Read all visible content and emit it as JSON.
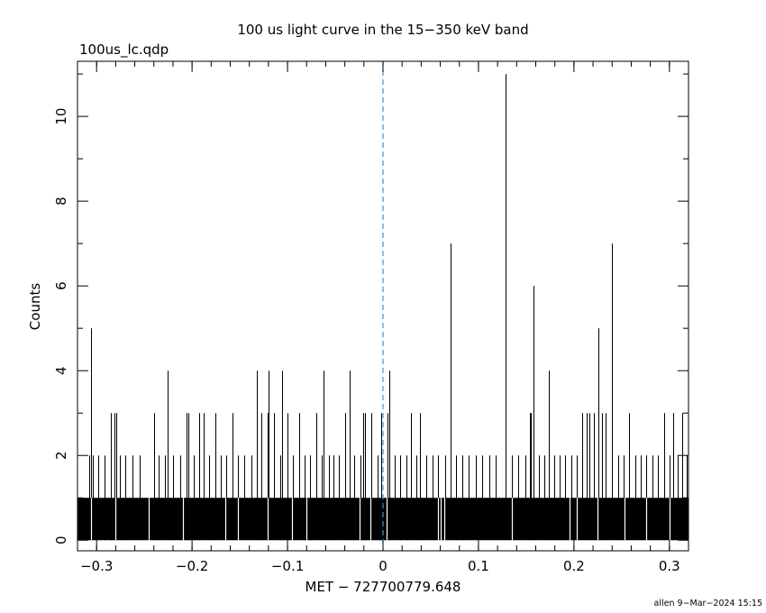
{
  "chart_data": {
    "type": "bar",
    "title": "100 us light curve in the 15−350 keV band",
    "file_label": "100us_lc.qdp",
    "xlabel": "MET − 727700779.648",
    "ylabel": "Counts",
    "footer": "allen  9−Mar−2024 15:15",
    "xlim": [
      -0.32,
      0.32
    ],
    "ylim": [
      -0.25,
      11.3
    ],
    "x_ticks": [
      {
        "value": -0.3,
        "label": "−0.3"
      },
      {
        "value": -0.2,
        "label": "−0.2"
      },
      {
        "value": -0.1,
        "label": "−0.1"
      },
      {
        "value": 0,
        "label": "0"
      },
      {
        "value": 0.1,
        "label": "0.1"
      },
      {
        "value": 0.2,
        "label": "0.2"
      },
      {
        "value": 0.3,
        "label": "0.3"
      }
    ],
    "y_ticks": [
      {
        "value": 0,
        "label": "0"
      },
      {
        "value": 2,
        "label": "2"
      },
      {
        "value": 4,
        "label": "4"
      },
      {
        "value": 6,
        "label": "6"
      },
      {
        "value": 8,
        "label": "8"
      },
      {
        "value": 10,
        "label": "10"
      }
    ],
    "trigger_line": {
      "x": 0,
      "color": "#3399cc",
      "style": "dashed"
    },
    "bin_width": 0.0001,
    "baseline_counts": 1,
    "peaks": [
      {
        "x": -0.3075,
        "y": 2
      },
      {
        "x": -0.306,
        "y": 3
      },
      {
        "x": -0.3055,
        "y": 5
      },
      {
        "x": -0.304,
        "y": 2
      },
      {
        "x": -0.298,
        "y": 2
      },
      {
        "x": -0.292,
        "y": 2
      },
      {
        "x": -0.285,
        "y": 3
      },
      {
        "x": -0.281,
        "y": 3
      },
      {
        "x": -0.279,
        "y": 3
      },
      {
        "x": -0.276,
        "y": 2
      },
      {
        "x": -0.27,
        "y": 2
      },
      {
        "x": -0.262,
        "y": 2
      },
      {
        "x": -0.255,
        "y": 2
      },
      {
        "x": -0.24,
        "y": 3
      },
      {
        "x": -0.235,
        "y": 2
      },
      {
        "x": -0.228,
        "y": 2
      },
      {
        "x": -0.2255,
        "y": 4
      },
      {
        "x": -0.22,
        "y": 2
      },
      {
        "x": -0.212,
        "y": 2
      },
      {
        "x": -0.206,
        "y": 3
      },
      {
        "x": -0.204,
        "y": 3
      },
      {
        "x": -0.198,
        "y": 2
      },
      {
        "x": -0.193,
        "y": 3
      },
      {
        "x": -0.188,
        "y": 3
      },
      {
        "x": -0.182,
        "y": 2
      },
      {
        "x": -0.176,
        "y": 3
      },
      {
        "x": -0.17,
        "y": 2
      },
      {
        "x": -0.164,
        "y": 2
      },
      {
        "x": -0.158,
        "y": 3
      },
      {
        "x": -0.152,
        "y": 2
      },
      {
        "x": -0.145,
        "y": 2
      },
      {
        "x": -0.138,
        "y": 2
      },
      {
        "x": -0.1325,
        "y": 4
      },
      {
        "x": -0.127,
        "y": 3
      },
      {
        "x": -0.121,
        "y": 3
      },
      {
        "x": -0.1195,
        "y": 4
      },
      {
        "x": -0.114,
        "y": 3
      },
      {
        "x": -0.108,
        "y": 2
      },
      {
        "x": -0.1055,
        "y": 4
      },
      {
        "x": -0.1,
        "y": 3
      },
      {
        "x": -0.094,
        "y": 2
      },
      {
        "x": -0.088,
        "y": 3
      },
      {
        "x": -0.082,
        "y": 2
      },
      {
        "x": -0.076,
        "y": 2
      },
      {
        "x": -0.0695,
        "y": 3
      },
      {
        "x": -0.0645,
        "y": 2
      },
      {
        "x": -0.0625,
        "y": 4
      },
      {
        "x": -0.057,
        "y": 2
      },
      {
        "x": -0.052,
        "y": 2
      },
      {
        "x": -0.046,
        "y": 2
      },
      {
        "x": -0.04,
        "y": 3
      },
      {
        "x": -0.0345,
        "y": 4
      },
      {
        "x": -0.03,
        "y": 2
      },
      {
        "x": -0.024,
        "y": 2
      },
      {
        "x": -0.0205,
        "y": 3
      },
      {
        "x": -0.0185,
        "y": 3
      },
      {
        "x": -0.012,
        "y": 3
      },
      {
        "x": -0.006,
        "y": 2
      },
      {
        "x": -0.002,
        "y": 3
      },
      {
        "x": 0.005,
        "y": 3
      },
      {
        "x": 0.0065,
        "y": 4
      },
      {
        "x": 0.012,
        "y": 2
      },
      {
        "x": 0.018,
        "y": 2
      },
      {
        "x": 0.025,
        "y": 2
      },
      {
        "x": 0.029,
        "y": 3
      },
      {
        "x": 0.035,
        "y": 2
      },
      {
        "x": 0.039,
        "y": 3
      },
      {
        "x": 0.045,
        "y": 2
      },
      {
        "x": 0.052,
        "y": 2
      },
      {
        "x": 0.058,
        "y": 2
      },
      {
        "x": 0.065,
        "y": 2
      },
      {
        "x": 0.0705,
        "y": 7
      },
      {
        "x": 0.076,
        "y": 2
      },
      {
        "x": 0.083,
        "y": 2
      },
      {
        "x": 0.09,
        "y": 2
      },
      {
        "x": 0.097,
        "y": 2
      },
      {
        "x": 0.104,
        "y": 2
      },
      {
        "x": 0.111,
        "y": 2
      },
      {
        "x": 0.118,
        "y": 2
      },
      {
        "x": 0.1285,
        "y": 11
      },
      {
        "x": 0.135,
        "y": 2
      },
      {
        "x": 0.142,
        "y": 2
      },
      {
        "x": 0.149,
        "y": 2
      },
      {
        "x": 0.1535,
        "y": 3
      },
      {
        "x": 0.155,
        "y": 3
      },
      {
        "x": 0.1575,
        "y": 6
      },
      {
        "x": 0.163,
        "y": 2
      },
      {
        "x": 0.169,
        "y": 2
      },
      {
        "x": 0.1735,
        "y": 4
      },
      {
        "x": 0.179,
        "y": 2
      },
      {
        "x": 0.185,
        "y": 2
      },
      {
        "x": 0.191,
        "y": 2
      },
      {
        "x": 0.197,
        "y": 2
      },
      {
        "x": 0.203,
        "y": 2
      },
      {
        "x": 0.209,
        "y": 3
      },
      {
        "x": 0.2135,
        "y": 3
      },
      {
        "x": 0.216,
        "y": 3
      },
      {
        "x": 0.221,
        "y": 3
      },
      {
        "x": 0.2255,
        "y": 5
      },
      {
        "x": 0.229,
        "y": 3
      },
      {
        "x": 0.2335,
        "y": 3
      },
      {
        "x": 0.2395,
        "y": 7
      },
      {
        "x": 0.246,
        "y": 2
      },
      {
        "x": 0.252,
        "y": 2
      },
      {
        "x": 0.258,
        "y": 3
      },
      {
        "x": 0.264,
        "y": 2
      },
      {
        "x": 0.27,
        "y": 2
      },
      {
        "x": 0.276,
        "y": 2
      },
      {
        "x": 0.282,
        "y": 2
      },
      {
        "x": 0.288,
        "y": 2
      },
      {
        "x": 0.2945,
        "y": 3
      },
      {
        "x": 0.3,
        "y": 2
      },
      {
        "x": 0.3035,
        "y": 3
      },
      {
        "x": 0.309,
        "y": 2
      },
      {
        "x": 0.313,
        "y": 3
      },
      {
        "x": 0.318,
        "y": 2
      }
    ],
    "gaps": [
      -0.3055,
      -0.28,
      -0.245,
      -0.21,
      -0.165,
      -0.152,
      -0.1205,
      -0.095,
      -0.08,
      -0.025,
      -0.013,
      0.0035,
      0.058,
      0.0605,
      0.064,
      0.135,
      0.1955,
      0.203,
      0.2245,
      0.253,
      0.276,
      0.3
    ]
  }
}
